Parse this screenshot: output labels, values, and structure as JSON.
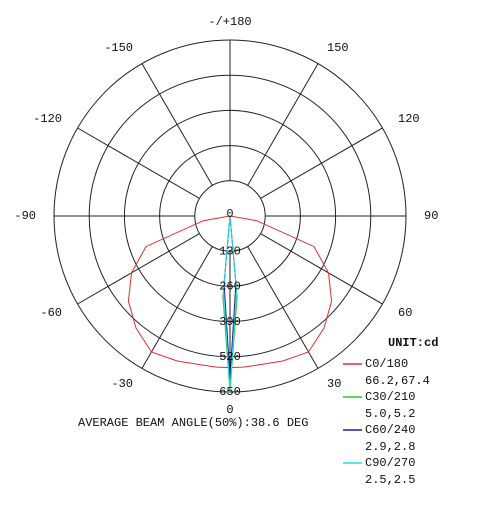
{
  "chart_data": {
    "type": "polar",
    "annotation": "AVERAGE BEAM ANGLE(50%):38.6 DEG",
    "unit": "UNIT:cd",
    "angles": [
      -90,
      -80,
      -70,
      -60,
      -50,
      -40,
      -30,
      -20,
      -10,
      -5,
      0,
      5,
      10,
      20,
      30,
      40,
      50,
      60,
      70,
      80,
      90
    ],
    "rlim": [
      0,
      650
    ],
    "rticks": [
      0,
      130,
      260,
      390,
      520,
      650
    ],
    "angle_ticks": [
      {
        "value": 180,
        "label": "-/+180"
      },
      -150,
      150,
      -120,
      120,
      -90,
      90,
      -60,
      60,
      -30,
      30,
      0
    ],
    "series": [
      {
        "name": "C0/180",
        "beam": "66.2,67.4",
        "color": "#e03030",
        "values": [
          0,
          100,
          330,
          420,
          490,
          540,
          580,
          570,
          560,
          560,
          560,
          560,
          560,
          570,
          580,
          540,
          490,
          420,
          330,
          100,
          0
        ]
      },
      {
        "name": "C30/210",
        "beam": "5.0,5.2",
        "color": "#22cc22",
        "values": [
          0,
          0,
          0,
          0,
          0,
          0,
          0,
          0,
          0,
          300,
          650,
          300,
          0,
          0,
          0,
          0,
          0,
          0,
          0,
          0,
          0
        ]
      },
      {
        "name": "C60/240",
        "beam": "2.9,2.8",
        "color": "#1a1aa0",
        "values": [
          0,
          0,
          0,
          0,
          0,
          0,
          0,
          0,
          0,
          250,
          600,
          250,
          0,
          0,
          0,
          0,
          0,
          0,
          0,
          0,
          0
        ]
      },
      {
        "name": "C90/270",
        "beam": "2.5,2.5",
        "color": "#22dddd",
        "values": [
          0,
          0,
          0,
          0,
          0,
          0,
          0,
          0,
          0,
          280,
          640,
          280,
          0,
          0,
          0,
          0,
          0,
          0,
          0,
          0,
          0
        ]
      }
    ]
  }
}
